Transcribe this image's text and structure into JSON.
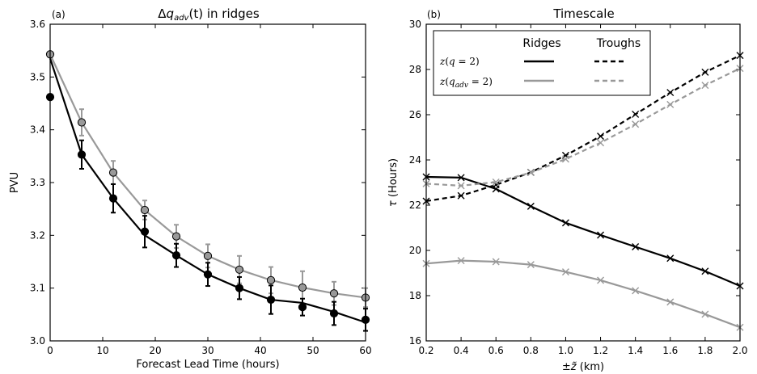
{
  "chart_data": [
    {
      "type": "line",
      "panel_label": "(a)",
      "title": "Δq_adv(t) in ridges",
      "title_parts": {
        "prefix": "Δ",
        "q": "q",
        "sub": "adv",
        "suffix": "(t) in ridges"
      },
      "xlabel": "Forecast Lead Time (hours)",
      "ylabel": "PVU",
      "xlim": [
        0,
        60
      ],
      "ylim": [
        3.0,
        3.6
      ],
      "xticks": [
        0,
        10,
        20,
        30,
        40,
        50,
        60
      ],
      "yticks": [
        "3.0",
        "3.1",
        "3.2",
        "3.3",
        "3.4",
        "3.5",
        "3.6"
      ],
      "grid": false,
      "series": [
        {
          "color": "#999999",
          "marker": "circle",
          "errorbars": true,
          "x": [
            0,
            6,
            12,
            18,
            24,
            30,
            36,
            42,
            48,
            54,
            60
          ],
          "y": [
            3.543,
            3.414,
            3.319,
            3.248,
            3.198,
            3.161,
            3.135,
            3.115,
            3.101,
            3.09,
            3.082
          ],
          "err": [
            0.0,
            0.025,
            0.022,
            0.018,
            0.022,
            0.022,
            0.026,
            0.025,
            0.031,
            0.022,
            0.018
          ]
        },
        {
          "color": "#000000",
          "marker": "circle",
          "errorbars": true,
          "x": [
            0,
            6,
            12,
            18,
            24,
            30,
            36,
            42,
            48,
            54,
            60
          ],
          "y": [
            3.462,
            3.353,
            3.27,
            3.207,
            3.162,
            3.126,
            3.1,
            3.078,
            3.064,
            3.052,
            3.04
          ],
          "err": [
            0.0,
            0.027,
            0.027,
            0.03,
            0.022,
            0.022,
            0.021,
            0.027,
            0.016,
            0.022,
            0.021
          ],
          "line_y": [
            3.535,
            3.353,
            3.27,
            3.2,
            3.162,
            3.126,
            3.1,
            3.078,
            3.072,
            3.055,
            3.035
          ]
        }
      ]
    },
    {
      "type": "line",
      "panel_label": "(b)",
      "title": "Timescale",
      "xlabel": "±z̃ (km)",
      "ylabel": "τ (Hours)",
      "xlim": [
        0.2,
        2.0
      ],
      "ylim": [
        16,
        30
      ],
      "xticks": [
        "0.2",
        "0.4",
        "0.6",
        "0.8",
        "1.0",
        "1.2",
        "1.4",
        "1.6",
        "1.8",
        "2.0"
      ],
      "yticks": [
        16,
        18,
        20,
        22,
        24,
        26,
        28,
        30
      ],
      "grid": false,
      "legend": {
        "placement": "upper-left",
        "column_headers": [
          "Ridges",
          "Troughs"
        ],
        "row_labels": [
          "z(q=2)",
          "z(q_adv=2)"
        ]
      },
      "x": [
        0.2,
        0.4,
        0.6,
        0.8,
        1.0,
        1.2,
        1.4,
        1.6,
        1.8,
        2.0
      ],
      "series": [
        {
          "name": "z(q=2) Ridges",
          "color": "#000000",
          "dash": false,
          "values": [
            23.25,
            23.22,
            22.72,
            21.95,
            21.22,
            20.68,
            20.16,
            19.65,
            19.08,
            18.43
          ]
        },
        {
          "name": "z(q=2) Troughs",
          "color": "#000000",
          "dash": true,
          "values": [
            22.18,
            22.42,
            22.9,
            23.45,
            24.2,
            25.05,
            26.02,
            26.98,
            27.88,
            28.62
          ]
        },
        {
          "name": "z(q_adv=2) Ridges",
          "color": "#999999",
          "dash": false,
          "values": [
            19.42,
            19.55,
            19.5,
            19.37,
            19.05,
            18.68,
            18.22,
            17.72,
            17.18,
            16.6
          ]
        },
        {
          "name": "z(q_adv=2) Troughs",
          "color": "#999999",
          "dash": true,
          "values": [
            22.95,
            22.86,
            23.02,
            23.44,
            24.04,
            24.76,
            25.58,
            26.45,
            27.3,
            28.05
          ]
        }
      ]
    }
  ]
}
